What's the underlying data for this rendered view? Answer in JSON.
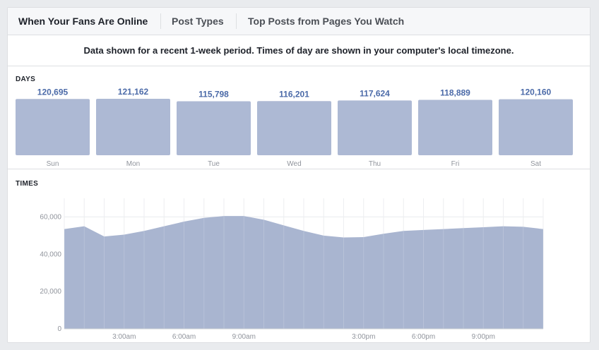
{
  "tabs": [
    {
      "label": "When Your Fans Are Online",
      "active": true
    },
    {
      "label": "Post Types",
      "active": false
    },
    {
      "label": "Top Posts from Pages You Watch",
      "active": false
    }
  ],
  "notice": "Data shown for a recent 1-week period. Times of day are shown in your computer's local timezone.",
  "colors": {
    "bar": "#adb9d4",
    "area": "#a9b5d0",
    "value_text": "#4b6aa8",
    "axis_text": "#90949c"
  },
  "chart_data": [
    {
      "type": "bar",
      "title": "DAYS",
      "categories": [
        "Sun",
        "Mon",
        "Tue",
        "Wed",
        "Thu",
        "Fri",
        "Sat"
      ],
      "values": [
        120695,
        121162,
        115798,
        116201,
        117624,
        118889,
        120160
      ],
      "value_labels": [
        "120,695",
        "121,162",
        "115,798",
        "116,201",
        "117,624",
        "118,889",
        "120,160"
      ]
    },
    {
      "type": "area",
      "title": "TIMES",
      "x": [
        0,
        1,
        2,
        3,
        4,
        5,
        6,
        7,
        8,
        9,
        10,
        11,
        12,
        13,
        14,
        15,
        16,
        17,
        18,
        19,
        20,
        21,
        22,
        23,
        24
      ],
      "values": [
        53500,
        55000,
        49500,
        50500,
        52500,
        55000,
        57500,
        59500,
        60500,
        60500,
        58500,
        55500,
        52500,
        50000,
        49000,
        49200,
        51000,
        52500,
        53000,
        53500,
        54000,
        54500,
        55000,
        54700,
        53500
      ],
      "x_ticks": [
        {
          "x": 3,
          "label": "3:00am"
        },
        {
          "x": 6,
          "label": "6:00am"
        },
        {
          "x": 9,
          "label": "9:00am"
        },
        {
          "x": 15,
          "label": "3:00pm"
        },
        {
          "x": 18,
          "label": "6:00pm"
        },
        {
          "x": 21,
          "label": "9:00pm"
        }
      ],
      "y_ticks": [
        {
          "value": 0,
          "label": "0"
        },
        {
          "value": 20000,
          "label": "20,000"
        },
        {
          "value": 40000,
          "label": "40,000"
        },
        {
          "value": 60000,
          "label": "60,000"
        }
      ],
      "ylim": [
        0,
        70000
      ],
      "grid": true
    }
  ]
}
